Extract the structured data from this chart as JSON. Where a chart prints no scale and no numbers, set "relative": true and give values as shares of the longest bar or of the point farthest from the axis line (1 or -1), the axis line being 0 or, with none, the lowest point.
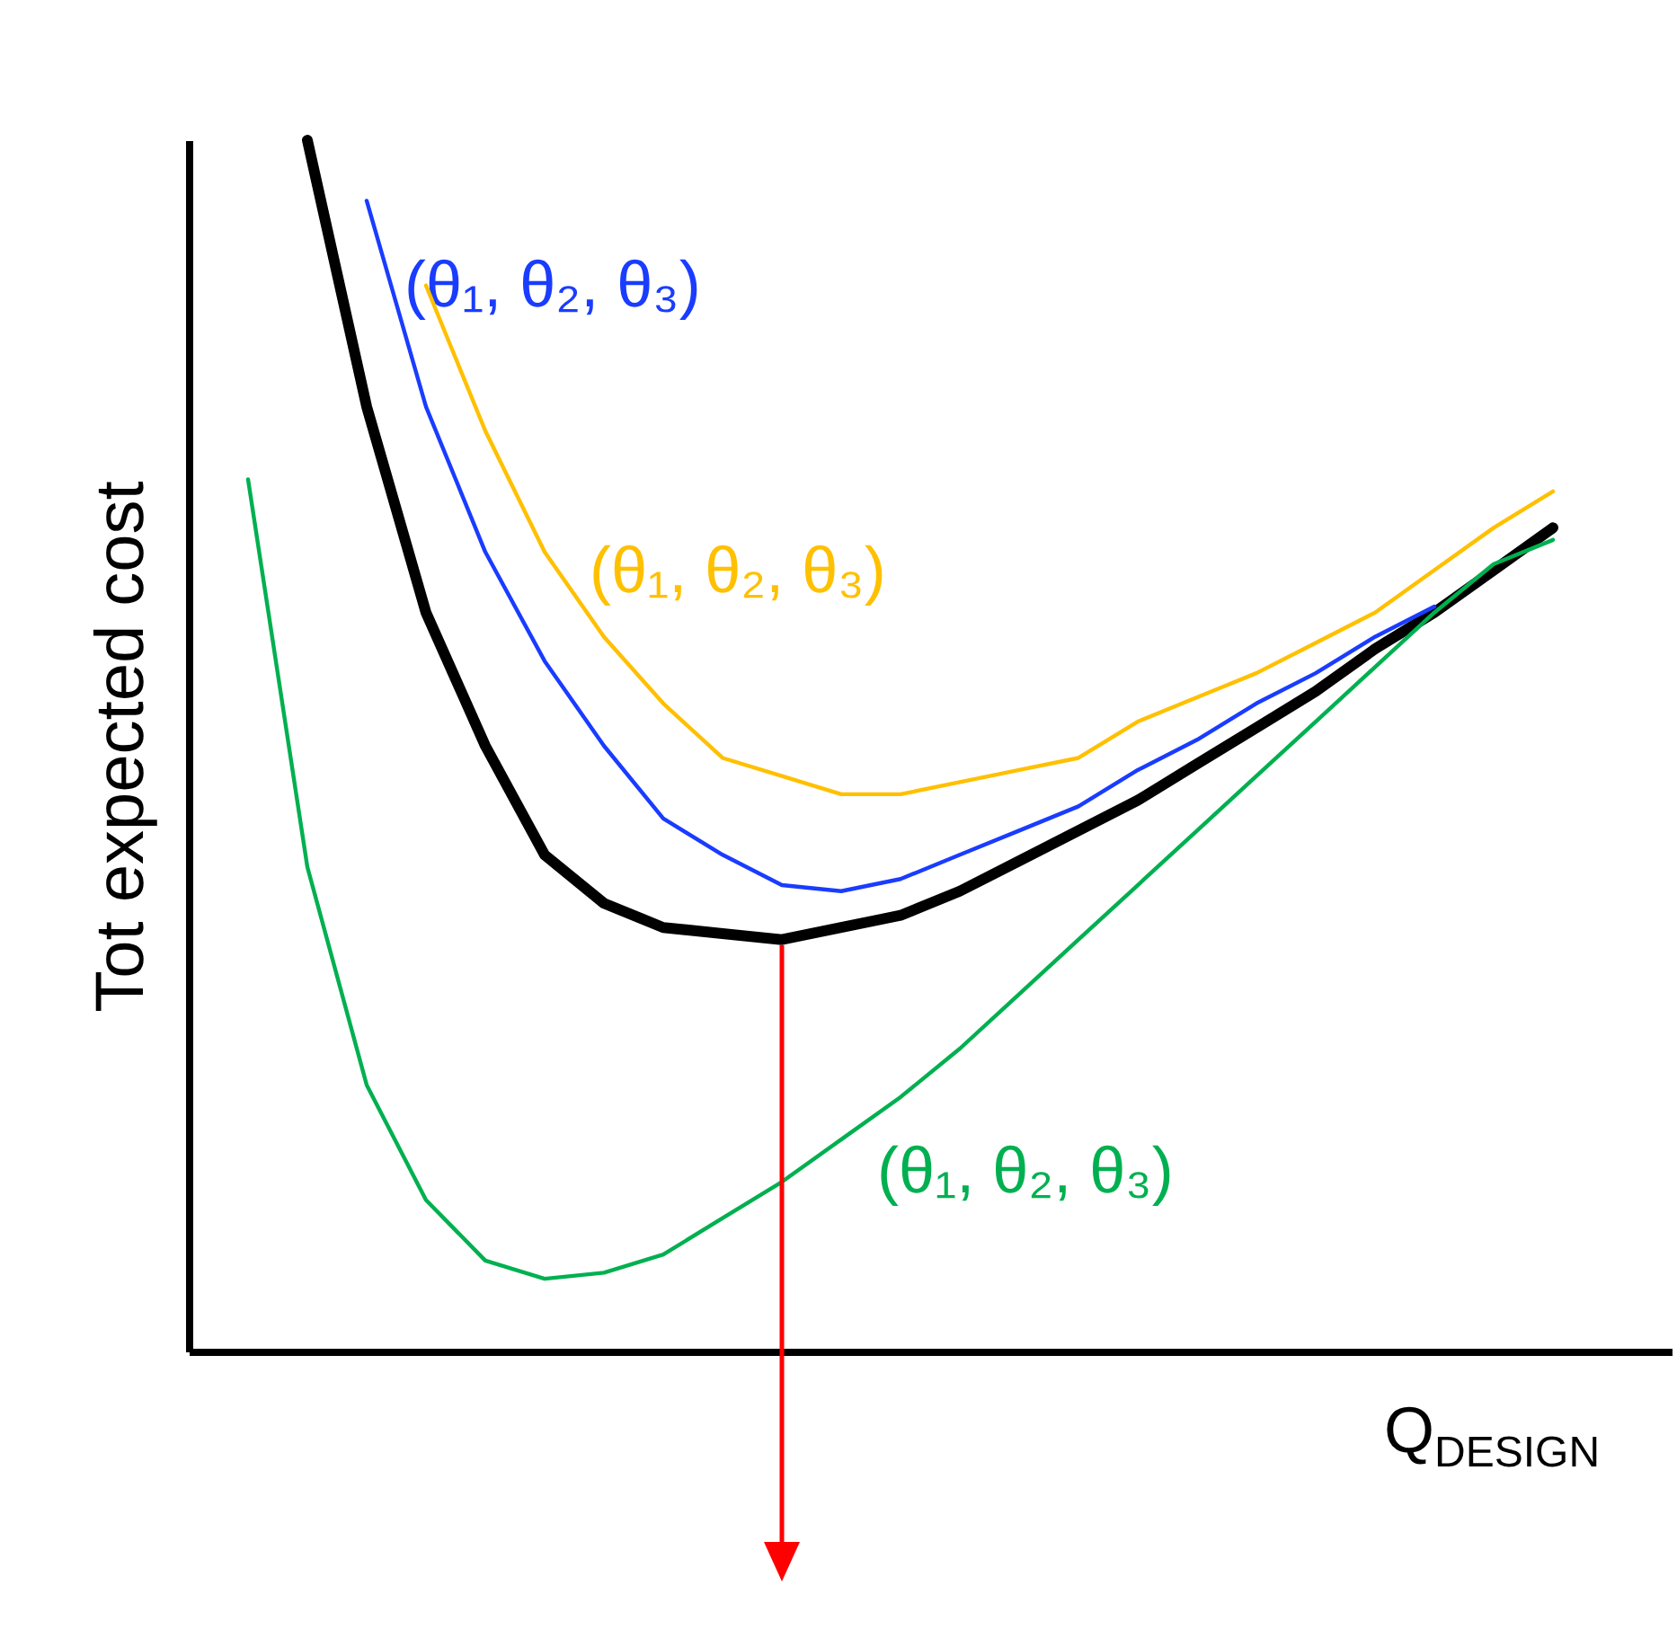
{
  "chart_data": {
    "type": "line",
    "relative": true,
    "xlabel": "Q$_{DESIGN}$",
    "ylabel": "Tot expected cost",
    "line_style": "solid",
    "categories": [
      null,
      null,
      null,
      null,
      null,
      null,
      null,
      null,
      null,
      null,
      null,
      null,
      null,
      null,
      null,
      null,
      null,
      null,
      null,
      null,
      null,
      null,
      null,
      null
    ],
    "series": [
      {
        "color": "#000000",
        "values": [
          null,
          1.0,
          0.78,
          0.61,
          0.5,
          0.41,
          0.37,
          0.35,
          0.345,
          0.34,
          0.35,
          0.36,
          0.38,
          0.405,
          0.43,
          0.455,
          0.485,
          0.515,
          0.545,
          0.58,
          0.61,
          0.645,
          0.68,
          null
        ]
      },
      {
        "name": "(θ₁, θ₂, θ₃)",
        "color": "#1a3cff",
        "values": [
          null,
          null,
          0.95,
          0.78,
          0.66,
          0.57,
          0.5,
          0.44,
          0.41,
          0.385,
          0.38,
          0.39,
          0.41,
          0.43,
          0.45,
          0.48,
          0.505,
          0.535,
          0.56,
          0.59,
          0.615,
          null,
          null,
          null
        ]
      },
      {
        "name": "(θ₁, θ₂, θ₃)",
        "color": "#ffc000",
        "values": [
          null,
          null,
          null,
          0.88,
          0.76,
          0.66,
          0.59,
          0.535,
          0.49,
          0.475,
          0.46,
          0.46,
          0.47,
          0.48,
          0.49,
          0.52,
          0.54,
          0.56,
          0.585,
          0.61,
          0.645,
          0.68,
          0.71,
          null
        ]
      },
      {
        "name": "(θ₁, θ₂, θ₃)",
        "color": "#00b050",
        "values": [
          0.72,
          0.4,
          0.22,
          0.125,
          0.075,
          0.06,
          0.065,
          0.08,
          0.11,
          0.14,
          0.175,
          0.21,
          0.25,
          0.295,
          0.34,
          0.385,
          0.43,
          0.475,
          0.52,
          0.565,
          0.61,
          0.65,
          0.67,
          null
        ]
      }
    ]
  }
}
